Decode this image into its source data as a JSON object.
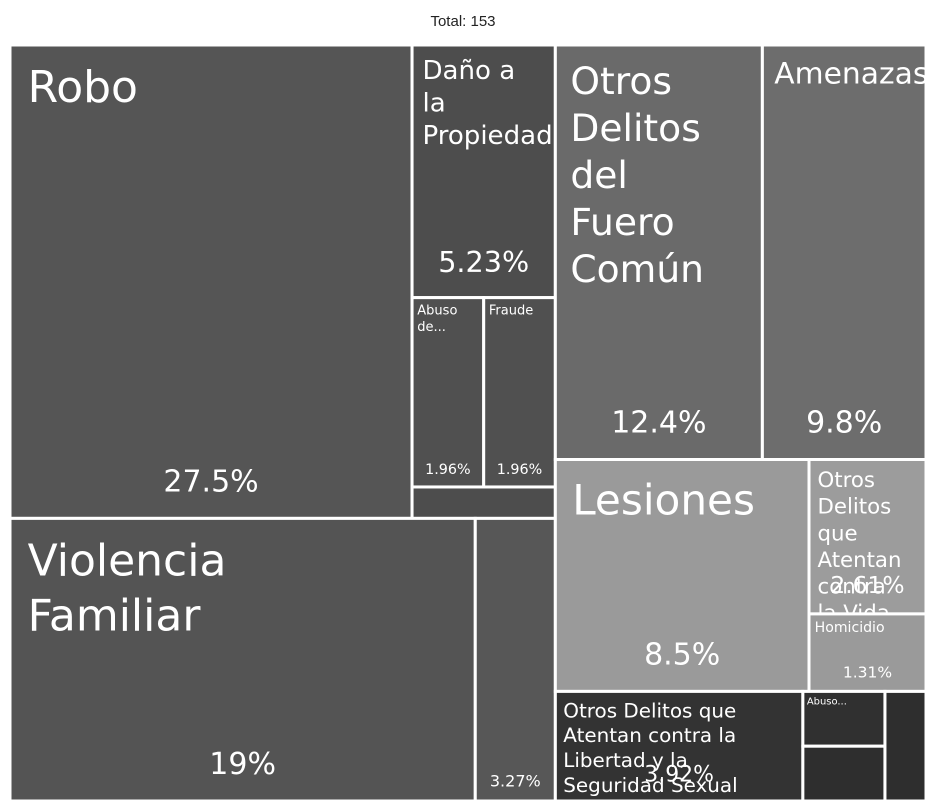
{
  "chart_data": {
    "type": "treemap",
    "title": "Total: 153",
    "categories": [
      "Robo",
      "Violencia Familiar",
      "Otros Delitos del Fuero Común",
      "Amenazas",
      "Lesiones",
      "Daño a la Propiedad",
      "Otros Delitos que Atentan contra la Libertad y la Seguridad Sexual",
      null,
      "Abuso de...",
      "Fraude",
      "Otros Delitos que Atentan contra la Vida y...",
      "Homicidio",
      "Abuso...",
      null,
      null,
      null
    ],
    "values": [
      27.5,
      19,
      12.4,
      9.8,
      8.5,
      5.23,
      3.92,
      3.27,
      1.96,
      1.96,
      2.61,
      1.31,
      0.65,
      0.65,
      0.65,
      0.65
    ],
    "value_labels": [
      "27.5%",
      "19%",
      "12.4%",
      "9.8%",
      "8.5%",
      "5.23%",
      "3.92%",
      "3.27%",
      "1.96%",
      "1.96%",
      "2.61%",
      "1.31%",
      null,
      null,
      null,
      null
    ],
    "colors": [
      "#555555",
      "#545454",
      "#6a6a6a",
      "#6d6d6d",
      "#9a9a9a",
      "#4d4d4d",
      "#333333",
      "#575757",
      "#505050",
      "#505050",
      "#9c9c9c",
      "#9a9a9a",
      "#303030",
      "#2e2e2e",
      "#2e2e2e",
      "#4d4d4d"
    ]
  }
}
